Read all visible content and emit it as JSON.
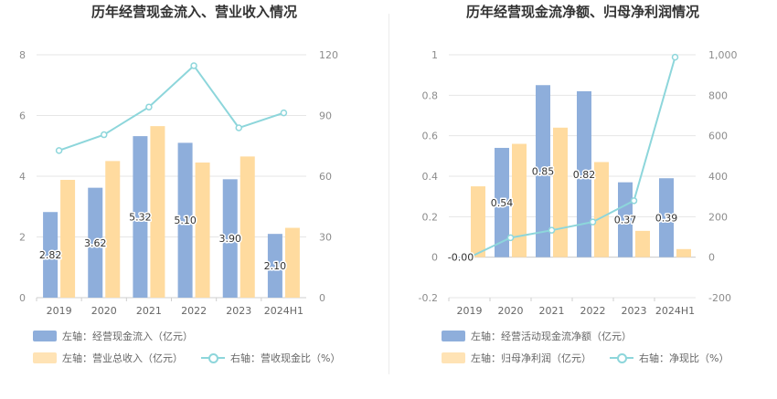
{
  "chart_data": [
    {
      "type": "bar+line",
      "title": "历年经营现金流入、营业收入情况",
      "categories": [
        "2019",
        "2020",
        "2021",
        "2022",
        "2023",
        "2024H1"
      ],
      "left_axis": {
        "ticks": [
          "0",
          "2",
          "4",
          "6",
          "8"
        ],
        "ylim": [
          0,
          8
        ]
      },
      "right_axis": {
        "ticks": [
          "0",
          "30",
          "60",
          "90",
          "120"
        ],
        "ylim": [
          0,
          120
        ]
      },
      "series": [
        {
          "name": "左轴：经营现金流入（亿元）",
          "type": "bar",
          "axis": "left",
          "color": "#8eaedb",
          "values": [
            2.82,
            3.62,
            5.32,
            5.1,
            3.9,
            2.1
          ],
          "labels": [
            "2.82",
            "3.62",
            "5.32",
            "5.10",
            "3.90",
            "2.10"
          ]
        },
        {
          "name": "左轴：营业总收入（亿元）",
          "type": "bar",
          "axis": "left",
          "color": "#ffdb9f",
          "values": [
            3.88,
            4.5,
            5.65,
            4.45,
            4.65,
            2.3
          ]
        },
        {
          "name": "右轴：营收现金比（%）",
          "type": "line",
          "axis": "right",
          "color": "#8dd6db",
          "values": [
            72.7,
            80.5,
            94.2,
            114.6,
            83.9,
            91.3
          ]
        }
      ],
      "grid": true,
      "legend_position": "bottom"
    },
    {
      "type": "bar+line",
      "title": "历年经营现金流净额、归母净利润情况",
      "categories": [
        "2019",
        "2020",
        "2021",
        "2022",
        "2023",
        "2024H1"
      ],
      "left_axis": {
        "ticks": [
          "-0.2",
          "0",
          "0.2",
          "0.4",
          "0.6",
          "0.8",
          "1"
        ],
        "ylim": [
          -0.2,
          1
        ]
      },
      "right_axis": {
        "ticks": [
          "-200",
          "0",
          "200",
          "400",
          "600",
          "800",
          "1,000"
        ],
        "ylim": [
          -200,
          1000
        ]
      },
      "series": [
        {
          "name": "左轴：经营活动现金流净额（亿元）",
          "type": "bar",
          "axis": "left",
          "color": "#8eaedb",
          "values": [
            -0.003,
            0.54,
            0.85,
            0.82,
            0.37,
            0.39
          ],
          "labels": [
            "-0.00",
            "0.54",
            "0.85",
            "0.82",
            "0.37",
            "0.39"
          ]
        },
        {
          "name": "左轴：归母净利润（亿元）",
          "type": "bar",
          "axis": "left",
          "color": "#ffdb9f",
          "values": [
            0.35,
            0.56,
            0.64,
            0.47,
            0.13,
            0.04
          ]
        },
        {
          "name": "右轴：净现比（%）",
          "type": "line",
          "axis": "right",
          "color": "#8dd6db",
          "values": [
            -1,
            96,
            133,
            174,
            279,
            988
          ]
        }
      ],
      "grid": true,
      "legend_position": "bottom"
    }
  ]
}
